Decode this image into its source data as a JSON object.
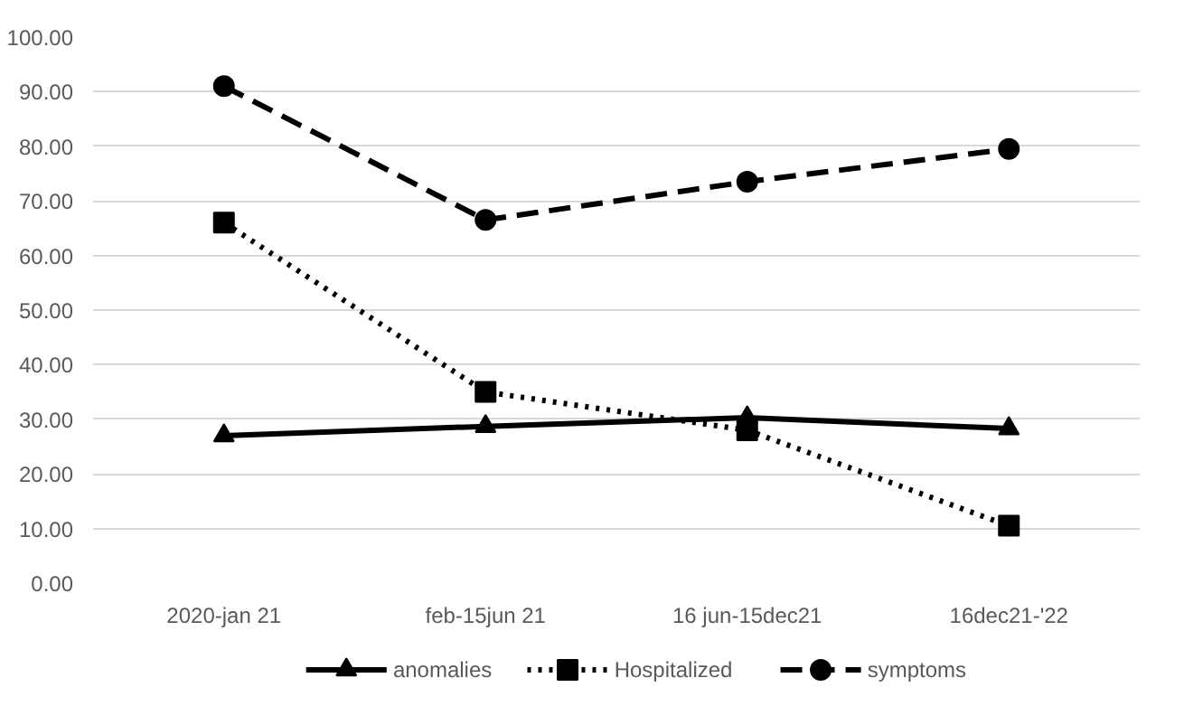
{
  "chart_data": {
    "type": "line",
    "categories": [
      "2020-jan 21",
      "feb-15jun 21",
      "16 jun-15dec21",
      "16dec21-'22"
    ],
    "series": [
      {
        "name": "anomalies",
        "color": "#000000",
        "values": [
          27.0,
          28.7,
          30.3,
          28.3
        ],
        "marker": "triangle",
        "line_style": "solid"
      },
      {
        "name": "Hospitalized",
        "color": "#000000",
        "values": [
          66.0,
          35.0,
          28.0,
          10.5
        ],
        "marker": "square",
        "line_style": "dotted"
      },
      {
        "name": "symptoms",
        "color": "#000000",
        "values": [
          91.0,
          66.5,
          73.5,
          79.5
        ],
        "marker": "circle",
        "line_style": "dashed"
      }
    ],
    "ylim": [
      0,
      100
    ],
    "yticks": [
      {
        "value": 0,
        "label": "0.00"
      },
      {
        "value": 10,
        "label": "10.00"
      },
      {
        "value": 20,
        "label": "20.00"
      },
      {
        "value": 30,
        "label": "30.00"
      },
      {
        "value": 40,
        "label": "40.00"
      },
      {
        "value": 50,
        "label": "50.00"
      },
      {
        "value": 60,
        "label": "60.00"
      },
      {
        "value": 70,
        "label": "70.00"
      },
      {
        "value": 80,
        "label": "80.00"
      },
      {
        "value": 90,
        "label": "90.00"
      },
      {
        "value": 100,
        "label": "100.00"
      }
    ],
    "grid": "y",
    "legend": "bottom"
  }
}
